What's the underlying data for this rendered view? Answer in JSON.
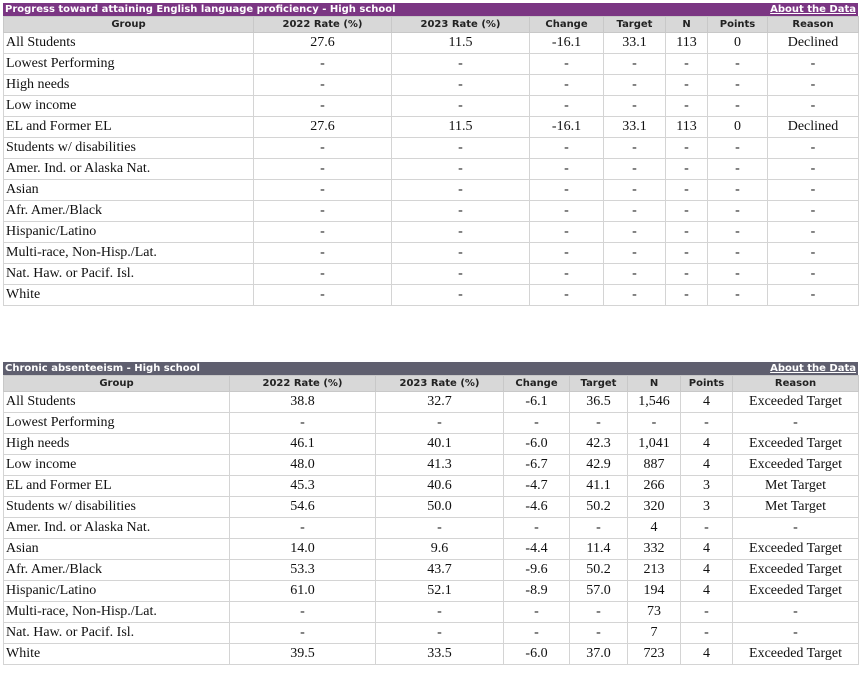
{
  "tables": [
    {
      "title": "Progress toward attaining English language proficiency - High school",
      "link": "About the Data",
      "theme": "#7b3683",
      "headers": [
        "Group",
        "2022 Rate (%)",
        "2023 Rate (%)",
        "Change",
        "Target",
        "N",
        "Points",
        "Reason"
      ],
      "rows": [
        [
          "All Students",
          "27.6",
          "11.5",
          "-16.1",
          "33.1",
          "113",
          "0",
          "Declined"
        ],
        [
          "Lowest Performing",
          "-",
          "-",
          "-",
          "-",
          "-",
          "-",
          "-"
        ],
        [
          "High needs",
          "-",
          "-",
          "-",
          "-",
          "-",
          "-",
          "-"
        ],
        [
          "Low income",
          "-",
          "-",
          "-",
          "-",
          "-",
          "-",
          "-"
        ],
        [
          "EL and Former EL",
          "27.6",
          "11.5",
          "-16.1",
          "33.1",
          "113",
          "0",
          "Declined"
        ],
        [
          "Students w/ disabilities",
          "-",
          "-",
          "-",
          "-",
          "-",
          "-",
          "-"
        ],
        [
          "Amer. Ind. or Alaska Nat.",
          "-",
          "-",
          "-",
          "-",
          "-",
          "-",
          "-"
        ],
        [
          "Asian",
          "-",
          "-",
          "-",
          "-",
          "-",
          "-",
          "-"
        ],
        [
          "Afr. Amer./Black",
          "-",
          "-",
          "-",
          "-",
          "-",
          "-",
          "-"
        ],
        [
          "Hispanic/Latino",
          "-",
          "-",
          "-",
          "-",
          "-",
          "-",
          "-"
        ],
        [
          "Multi-race, Non-Hisp./Lat.",
          "-",
          "-",
          "-",
          "-",
          "-",
          "-",
          "-"
        ],
        [
          "Nat. Haw. or Pacif. Isl.",
          "-",
          "-",
          "-",
          "-",
          "-",
          "-",
          "-"
        ],
        [
          "White",
          "-",
          "-",
          "-",
          "-",
          "-",
          "-",
          "-"
        ]
      ]
    },
    {
      "title": "Chronic absenteeism - High school",
      "link": "About the Data",
      "theme": "#5f5f6f",
      "headers": [
        "Group",
        "2022 Rate (%)",
        "2023 Rate (%)",
        "Change",
        "Target",
        "N",
        "Points",
        "Reason"
      ],
      "rows": [
        [
          "All Students",
          "38.8",
          "32.7",
          "-6.1",
          "36.5",
          "1,546",
          "4",
          "Exceeded Target"
        ],
        [
          "Lowest Performing",
          "-",
          "-",
          "-",
          "-",
          "-",
          "-",
          "-"
        ],
        [
          "High needs",
          "46.1",
          "40.1",
          "-6.0",
          "42.3",
          "1,041",
          "4",
          "Exceeded Target"
        ],
        [
          "Low income",
          "48.0",
          "41.3",
          "-6.7",
          "42.9",
          "887",
          "4",
          "Exceeded Target"
        ],
        [
          "EL and Former EL",
          "45.3",
          "40.6",
          "-4.7",
          "41.1",
          "266",
          "3",
          "Met Target"
        ],
        [
          "Students w/ disabilities",
          "54.6",
          "50.0",
          "-4.6",
          "50.2",
          "320",
          "3",
          "Met Target"
        ],
        [
          "Amer. Ind. or Alaska Nat.",
          "-",
          "-",
          "-",
          "-",
          "4",
          "-",
          "-"
        ],
        [
          "Asian",
          "14.0",
          "9.6",
          "-4.4",
          "11.4",
          "332",
          "4",
          "Exceeded Target"
        ],
        [
          "Afr. Amer./Black",
          "53.3",
          "43.7",
          "-9.6",
          "50.2",
          "213",
          "4",
          "Exceeded Target"
        ],
        [
          "Hispanic/Latino",
          "61.0",
          "52.1",
          "-8.9",
          "57.0",
          "194",
          "4",
          "Exceeded Target"
        ],
        [
          "Multi-race, Non-Hisp./Lat.",
          "-",
          "-",
          "-",
          "-",
          "73",
          "-",
          "-"
        ],
        [
          "Nat. Haw. or Pacif. Isl.",
          "-",
          "-",
          "-",
          "-",
          "7",
          "-",
          "-"
        ],
        [
          "White",
          "39.5",
          "33.5",
          "-6.0",
          "37.0",
          "723",
          "4",
          "Exceeded Target"
        ]
      ]
    }
  ]
}
